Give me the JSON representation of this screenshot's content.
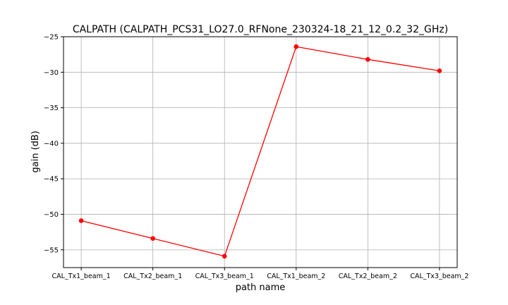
{
  "chart_data": {
    "type": "line",
    "title": "CALPATH (CALPATH_PCS31_LO27.0_RFNone_230324-18_21_12_0.2_32_GHz)",
    "xlabel": "path name",
    "ylabel": "gain (dB)",
    "categories": [
      "CAL_Tx1_beam_1",
      "CAL_Tx2_beam_1",
      "CAL_Tx3_beam_1",
      "CAL_Tx1_beam_2",
      "CAL_Tx2_beam_2",
      "CAL_Tx3_beam_2"
    ],
    "series": [
      {
        "values": [
          -50.9,
          -53.4,
          -55.9,
          -26.4,
          -28.2,
          -29.8
        ],
        "color": "#ff0000",
        "marker": "circle"
      }
    ],
    "ylim": [
      -57.5,
      -25
    ],
    "yticks": [
      -55,
      -50,
      -45,
      -40,
      -35,
      -30,
      -25
    ],
    "ytick_labels": [
      "−55",
      "−50",
      "−45",
      "−40",
      "−35",
      "−30",
      "−25"
    ],
    "grid": true,
    "legend": "none"
  }
}
